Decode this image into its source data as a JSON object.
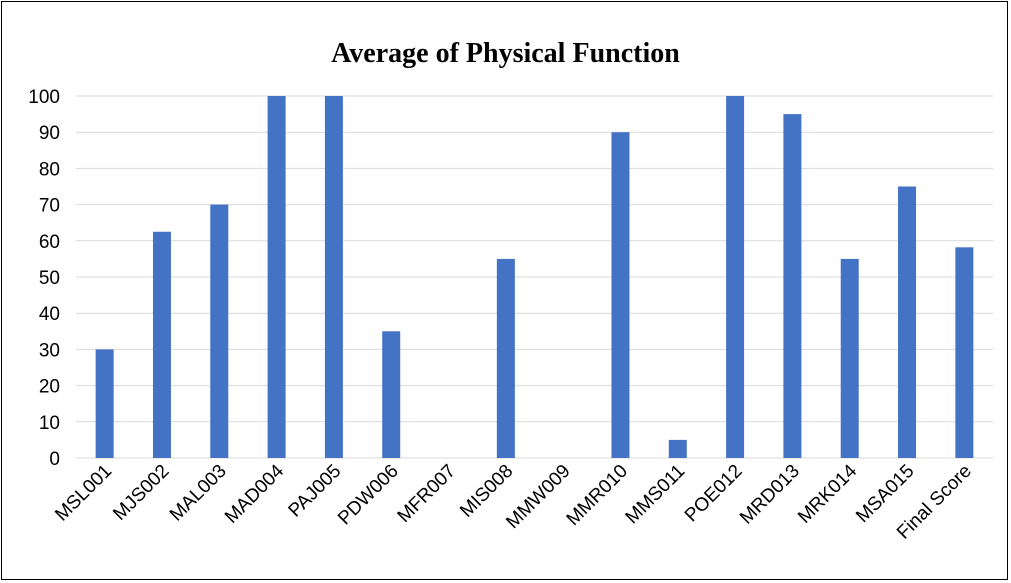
{
  "chart_data": {
    "type": "bar",
    "title": "Average of Physical Function",
    "xlabel": "",
    "ylabel": "",
    "categories": [
      "MSL001",
      "MJS002",
      "MAL003",
      "MAD004",
      "PAJ005",
      "PDW006",
      "MFR007",
      "MIS008",
      "MMW009",
      "MMR010",
      "MMS011",
      "POE012",
      "MRD013",
      "MRK014",
      "MSA015",
      "Final Score"
    ],
    "values": [
      30,
      62.5,
      70,
      100,
      100,
      35,
      0,
      55,
      0,
      90,
      5,
      100,
      95,
      55,
      75,
      58.2
    ],
    "ylim": [
      0,
      100
    ],
    "yticks": [
      0,
      10,
      20,
      30,
      40,
      50,
      60,
      70,
      80,
      90,
      100
    ],
    "grid": true,
    "legend": "none",
    "bar_color": "#4472C4",
    "grid_color": "#D9D9D9"
  }
}
